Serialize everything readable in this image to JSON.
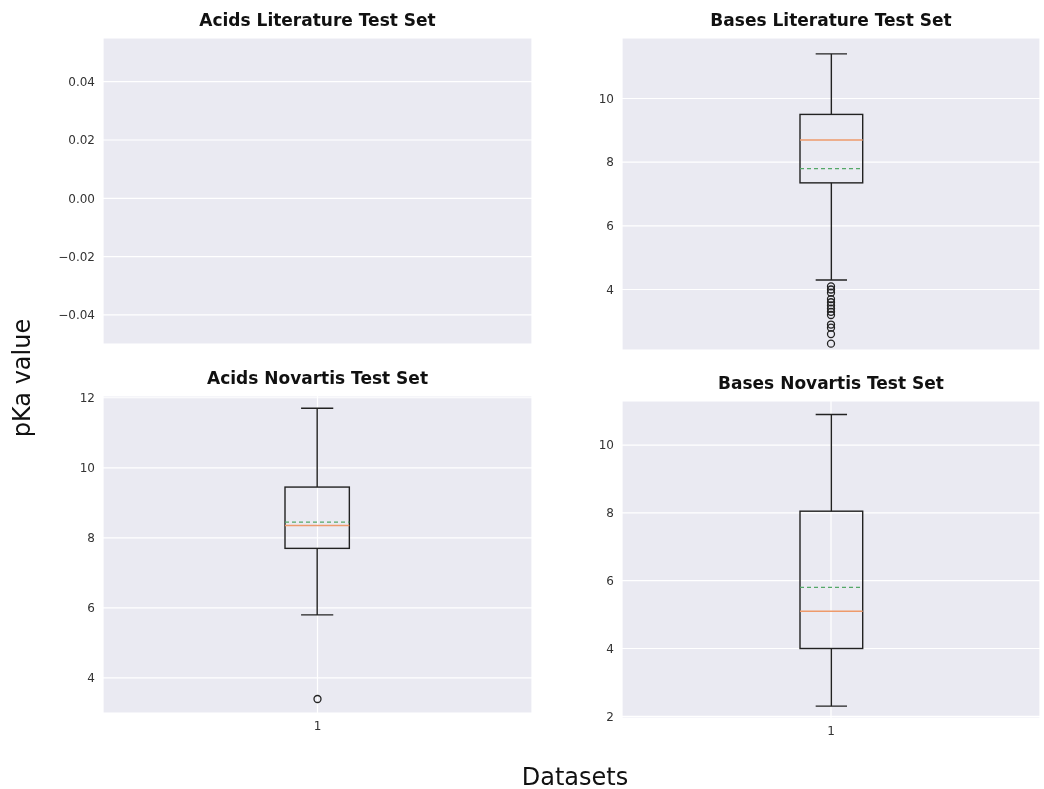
{
  "chart_data": [
    {
      "type": "box",
      "title": "Acids Literature Test Set",
      "ylabel": "pKa value",
      "categories": [
        null
      ],
      "boxes": [
        null
      ],
      "ylim": [
        -0.05,
        0.055
      ],
      "yticks": [
        {
          "value": -0.04,
          "label": "−0.04"
        },
        {
          "value": -0.02,
          "label": "−0.02"
        },
        {
          "value": 0,
          "label": "0.00"
        },
        {
          "value": 0.02,
          "label": "0.02"
        },
        {
          "value": 0.04,
          "label": "0.04"
        }
      ],
      "grid": true,
      "tick_labels": "y"
    },
    {
      "type": "box",
      "title": "Bases Literature Test Set",
      "categories": [
        null
      ],
      "boxes": [
        {
          "low": 4.3,
          "q1": 7.35,
          "median": 8.7,
          "q3": 9.5,
          "high": 11.4,
          "mean": 7.8,
          "outliers": [
            4.1,
            4.0,
            3.9,
            3.7,
            3.6,
            3.5,
            3.4,
            3.3,
            3.2,
            2.9,
            2.8,
            2.6,
            2.3
          ]
        }
      ],
      "ylim": [
        2.1,
        11.9
      ],
      "yticks": [
        4,
        6,
        8,
        10
      ],
      "grid": true,
      "tick_labels": "y"
    },
    {
      "type": "box",
      "title": "Acids Novartis Test Set",
      "categories": [
        "1"
      ],
      "boxes": [
        {
          "low": 5.8,
          "q1": 7.7,
          "median": 8.35,
          "q3": 9.45,
          "high": 11.7,
          "mean": 8.45,
          "outliers": [
            3.4
          ]
        }
      ],
      "ylim": [
        3.0,
        12.05
      ],
      "yticks": [
        4,
        6,
        8,
        10,
        12
      ],
      "grid": true
    },
    {
      "type": "box",
      "title": "Bases Novartis Test Set",
      "xlabel": "Datasets",
      "categories": [
        "1"
      ],
      "boxes": [
        {
          "low": 2.3,
          "q1": 4.0,
          "median": 5.1,
          "q3": 8.05,
          "high": 10.9,
          "mean": 5.8
        }
      ],
      "ylim": [
        1.95,
        11.3
      ],
      "yticks": [
        2,
        4,
        6,
        8,
        10
      ],
      "grid": true
    }
  ]
}
